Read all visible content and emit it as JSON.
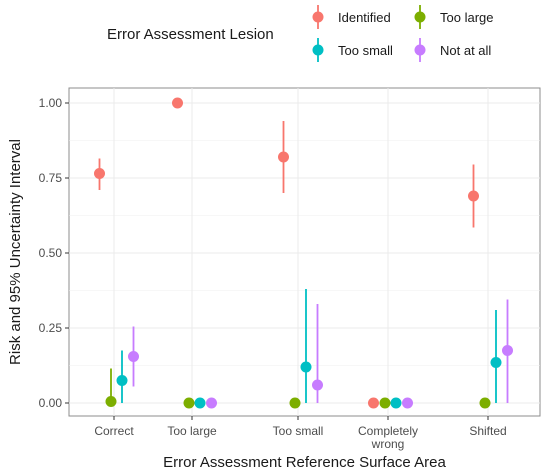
{
  "chart_data": {
    "type": "scatter",
    "subtype": "point-range",
    "xlabel": "Error Assessment Reference Surface Area",
    "ylabel": "Risk and 95% Uncertainty Interval",
    "ylim": [
      0,
      1
    ],
    "yticks": [
      "0.00",
      "0.25",
      "0.50",
      "0.75",
      "1.00"
    ],
    "categories": [
      "Correct",
      "Too large",
      "Too small",
      "Completely wrong",
      "Shifted"
    ],
    "category_lines": [
      [
        "Correct"
      ],
      [
        "Too large"
      ],
      [
        "Too small"
      ],
      [
        "Completely",
        "wrong"
      ],
      [
        "Shifted"
      ]
    ],
    "grid": true,
    "legend": {
      "title": "Error Assessment Lesion",
      "placement": "top"
    },
    "series": [
      {
        "name": "Identified",
        "color": "#F8766D",
        "values": [
          0.765,
          1.0,
          0.82,
          0.0,
          0.69
        ],
        "lower": [
          0.71,
          1.0,
          0.7,
          0.0,
          0.585
        ],
        "upper": [
          0.815,
          1.0,
          0.94,
          0.0,
          0.795
        ]
      },
      {
        "name": "Too large",
        "color": "#7CAE00",
        "values": [
          0.005,
          0.0,
          0.0,
          0.0,
          0.0
        ],
        "lower": [
          0.0,
          0.0,
          0.0,
          0.0,
          0.0
        ],
        "upper": [
          0.115,
          0.0,
          0.0,
          0.0,
          0.0
        ]
      },
      {
        "name": "Too small",
        "color": "#00BFC4",
        "values": [
          0.075,
          0.0,
          0.12,
          0.0,
          0.135
        ],
        "lower": [
          0.0,
          0.0,
          0.0,
          0.0,
          0.0
        ],
        "upper": [
          0.175,
          0.0,
          0.38,
          0.0,
          0.31
        ]
      },
      {
        "name": "Not at all",
        "color": "#C77CFF",
        "values": [
          0.155,
          0.0,
          0.06,
          0.0,
          0.175
        ],
        "lower": [
          0.055,
          0.0,
          0.0,
          0.0,
          0.0
        ],
        "upper": [
          0.255,
          0.0,
          0.33,
          0.0,
          0.345
        ]
      }
    ]
  }
}
